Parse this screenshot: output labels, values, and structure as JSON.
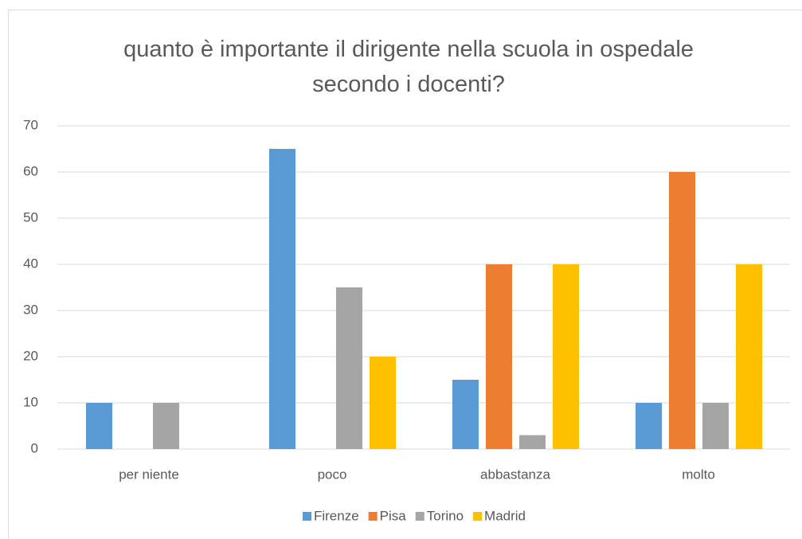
{
  "chart_data": {
    "type": "bar",
    "title": "quanto è importante il dirigente nella scuola in ospedale secondo i docenti?",
    "categories": [
      "per niente",
      "poco",
      "abbastanza",
      "molto"
    ],
    "series": [
      {
        "name": "Firenze",
        "color": "#5b9bd5",
        "values": [
          10,
          65,
          15,
          10
        ]
      },
      {
        "name": "Pisa",
        "color": "#ed7d31",
        "values": [
          0,
          0,
          40,
          60
        ]
      },
      {
        "name": "Torino",
        "color": "#a5a5a5",
        "values": [
          10,
          35,
          3,
          10
        ]
      },
      {
        "name": "Madrid",
        "color": "#ffc000",
        "values": [
          0,
          20,
          40,
          40
        ]
      }
    ],
    "ylim": [
      0,
      70
    ],
    "yticks": [
      0,
      10,
      20,
      30,
      40,
      50,
      60,
      70
    ],
    "grid": true,
    "legend": "bottom"
  }
}
